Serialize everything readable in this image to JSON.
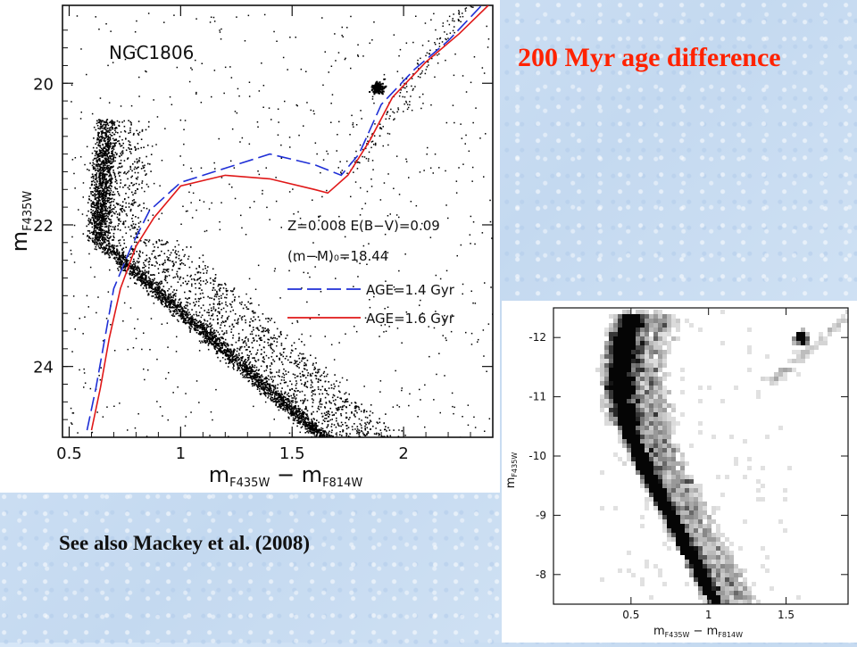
{
  "headline": "200 Myr age difference",
  "caption": "See also Mackey et al. (2008)",
  "colors": {
    "blue_isochrone": "#1f2fd6",
    "red_isochrone": "#e01818",
    "headline": "#ff2200"
  },
  "chart_data": [
    {
      "type": "scatter",
      "title": "NGC1806",
      "xlabel": "m_F435W − m_F814W",
      "ylabel": "m_F435W",
      "xlim": [
        0.47,
        2.4
      ],
      "ylim": [
        25.0,
        18.9
      ],
      "x_ticks": [
        "0.5",
        "1",
        "1.5",
        "2"
      ],
      "y_ticks": [
        "20",
        "22",
        "24"
      ],
      "annotations": [
        "Z=0.008   E(B−V)=0.09",
        "(m−M)₀=18.44"
      ],
      "legend": {
        "placement": "center-right",
        "entries": [
          "AGE=1.4 Gyr",
          "AGE=1.6 Gyr"
        ]
      },
      "series": [
        {
          "name": "AGE=1.4 Gyr",
          "style": "dashed",
          "color": "#1f2fd6",
          "x": [
            0.58,
            0.62,
            0.66,
            0.7,
            0.78,
            0.86,
            1.0,
            1.2,
            1.4,
            1.6,
            1.72,
            1.8,
            1.9,
            2.05,
            2.2,
            2.35
          ],
          "y": [
            24.9,
            24.3,
            23.6,
            22.9,
            22.3,
            21.8,
            21.4,
            21.2,
            21.0,
            21.15,
            21.3,
            21.0,
            20.3,
            19.8,
            19.4,
            18.9
          ]
        },
        {
          "name": "AGE=1.6 Gyr",
          "style": "solid",
          "color": "#e01818",
          "x": [
            0.6,
            0.64,
            0.68,
            0.73,
            0.8,
            0.88,
            1.0,
            1.2,
            1.4,
            1.6,
            1.66,
            1.75,
            1.85,
            1.95,
            2.1,
            2.25,
            2.38
          ],
          "y": [
            24.9,
            24.3,
            23.6,
            22.9,
            22.3,
            21.9,
            21.45,
            21.3,
            21.35,
            21.5,
            21.55,
            21.3,
            20.8,
            20.2,
            19.7,
            19.3,
            18.9
          ]
        }
      ],
      "red_clump": {
        "x": 1.88,
        "y": 20.05
      }
    },
    {
      "type": "heatmap",
      "xlabel": "m_F435W − m_F814W",
      "ylabel": "m_F435W",
      "xlim": [
        0.0,
        1.9
      ],
      "ylim": [
        -7.5,
        -12.5
      ],
      "x_ticks": [
        "0.5",
        "1",
        "1.5"
      ],
      "y_ticks": [
        "-12",
        "-11",
        "-10",
        "-9",
        "-8"
      ],
      "ridge": {
        "x": [
          1.05,
          0.95,
          0.85,
          0.75,
          0.65,
          0.55,
          0.48,
          0.43,
          0.42,
          0.45,
          0.5
        ],
        "y": [
          -7.5,
          -8.0,
          -8.5,
          -9.0,
          -9.5,
          -10.0,
          -10.5,
          -11.0,
          -11.5,
          -12.0,
          -12.3
        ]
      },
      "clump": {
        "x": 1.6,
        "y": -12.0
      }
    }
  ]
}
